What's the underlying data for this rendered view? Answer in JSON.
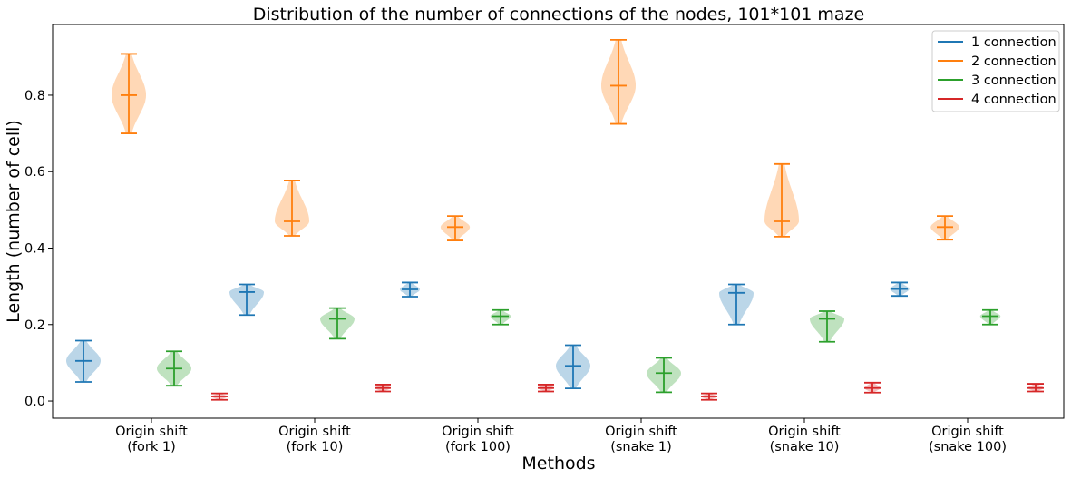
{
  "chart_data": {
    "type": "violin",
    "title": "Distribution of the number of connections of the nodes, 101*101 maze",
    "xlabel": "Methods",
    "ylabel": "Length (number of cell)",
    "ylim": [
      -0.045,
      0.985
    ],
    "yticks": [
      0.0,
      0.2,
      0.4,
      0.6,
      0.8
    ],
    "ytick_labels": [
      "0.0",
      "0.2",
      "0.4",
      "0.6",
      "0.8"
    ],
    "categories": [
      [
        "Origin shift",
        "(fork 1)"
      ],
      [
        "Origin shift",
        "(fork 10)"
      ],
      [
        "Origin shift",
        "(fork 100)"
      ],
      [
        "Origin shift",
        "(snake 1)"
      ],
      [
        "Origin shift",
        "(snake 10)"
      ],
      [
        "Origin shift",
        "(snake 100)"
      ]
    ],
    "legend_position": "top-right",
    "grid": false,
    "series": [
      {
        "name": "1 connection",
        "color": "#1f77b4",
        "min": [
          0.05,
          0.225,
          0.273,
          0.033,
          0.2,
          0.275
        ],
        "mean": [
          0.105,
          0.285,
          0.292,
          0.092,
          0.283,
          0.293
        ],
        "max": [
          0.158,
          0.305,
          0.31,
          0.146,
          0.305,
          0.31
        ]
      },
      {
        "name": "2 connection",
        "color": "#ff7f0e",
        "min": [
          0.7,
          0.432,
          0.42,
          0.725,
          0.43,
          0.422
        ],
        "mean": [
          0.8,
          0.47,
          0.455,
          0.825,
          0.47,
          0.455
        ],
        "max": [
          0.908,
          0.577,
          0.484,
          0.945,
          0.62,
          0.484
        ]
      },
      {
        "name": "3 connection",
        "color": "#2ca02c",
        "min": [
          0.04,
          0.163,
          0.2,
          0.023,
          0.155,
          0.2
        ],
        "mean": [
          0.085,
          0.215,
          0.222,
          0.073,
          0.215,
          0.222
        ],
        "max": [
          0.13,
          0.243,
          0.238,
          0.113,
          0.235,
          0.238
        ]
      },
      {
        "name": "4 connection",
        "color": "#d62728",
        "min": [
          0.003,
          0.025,
          0.025,
          0.003,
          0.022,
          0.025
        ],
        "mean": [
          0.012,
          0.034,
          0.034,
          0.012,
          0.034,
          0.034
        ],
        "max": [
          0.02,
          0.043,
          0.043,
          0.02,
          0.048,
          0.045
        ]
      }
    ]
  }
}
